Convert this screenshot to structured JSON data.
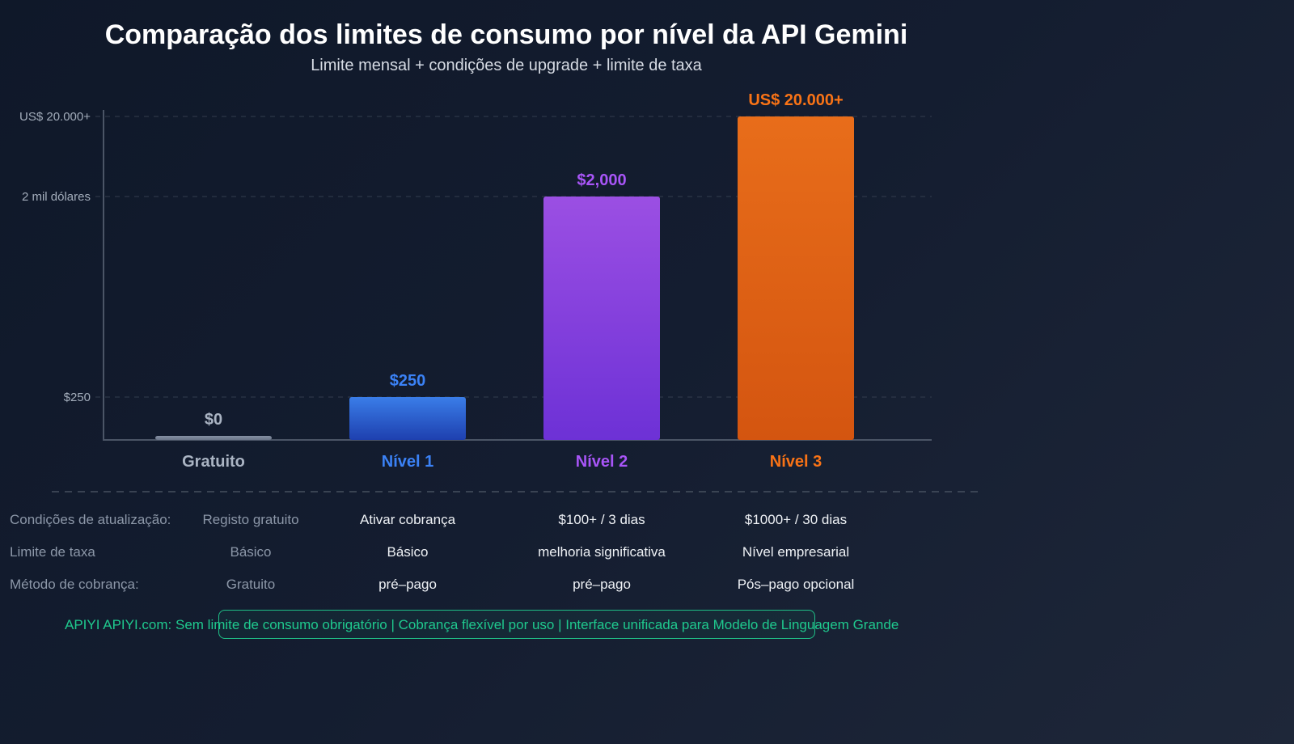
{
  "title": "Comparação dos limites de consumo por nível da API Gemini",
  "subtitle": "Limite mensal + condições de upgrade + limite de taxa",
  "chart_data": {
    "type": "bar",
    "title": "Comparação dos limites de consumo por nível da API Gemini",
    "subtitle": "Limite mensal + condições de upgrade + limite de taxa",
    "categories": [
      "Gratuito",
      "Nível 1",
      "Nível 2",
      "Nível 3"
    ],
    "values": [
      0,
      250,
      2000,
      20000
    ],
    "data_labels": [
      "$0",
      "$250",
      "$2,000",
      "US$ 20.000+"
    ],
    "colors": [
      "#7b879a",
      "#3b82f6",
      "#a855f7",
      "#f97316"
    ],
    "yticks": [
      {
        "value": 250,
        "label": "$250"
      },
      {
        "value": 2000,
        "label": "2 mil dólares"
      },
      {
        "value": 20000,
        "label": "US$ 20.000+"
      }
    ],
    "yscale": "non-linear",
    "grid": true
  },
  "table": {
    "rows": [
      {
        "label": "Condições de atualização:",
        "overlap": "Registo gratuito",
        "cells": [
          "Ativar cobrança",
          "$100+ / 3 dias",
          "$1000+ / 30 dias"
        ]
      },
      {
        "label": "Limite de taxa",
        "overlap": "Básico",
        "cells": [
          "Básico",
          "melhoria significativa",
          "Nível empresarial"
        ]
      },
      {
        "label": "Método de cobrança:",
        "overlap": "Gratuito",
        "cells": [
          "pré–pago",
          "pré–pago",
          "Pós–pago opcional"
        ]
      }
    ]
  },
  "footer": "APIYI APIYI.com: Sem limite de consumo obrigatório | Cobrança flexível por uso | Interface unificada para Modelo de Linguagem Grande",
  "colors": {
    "accent": "#1fc98e"
  }
}
